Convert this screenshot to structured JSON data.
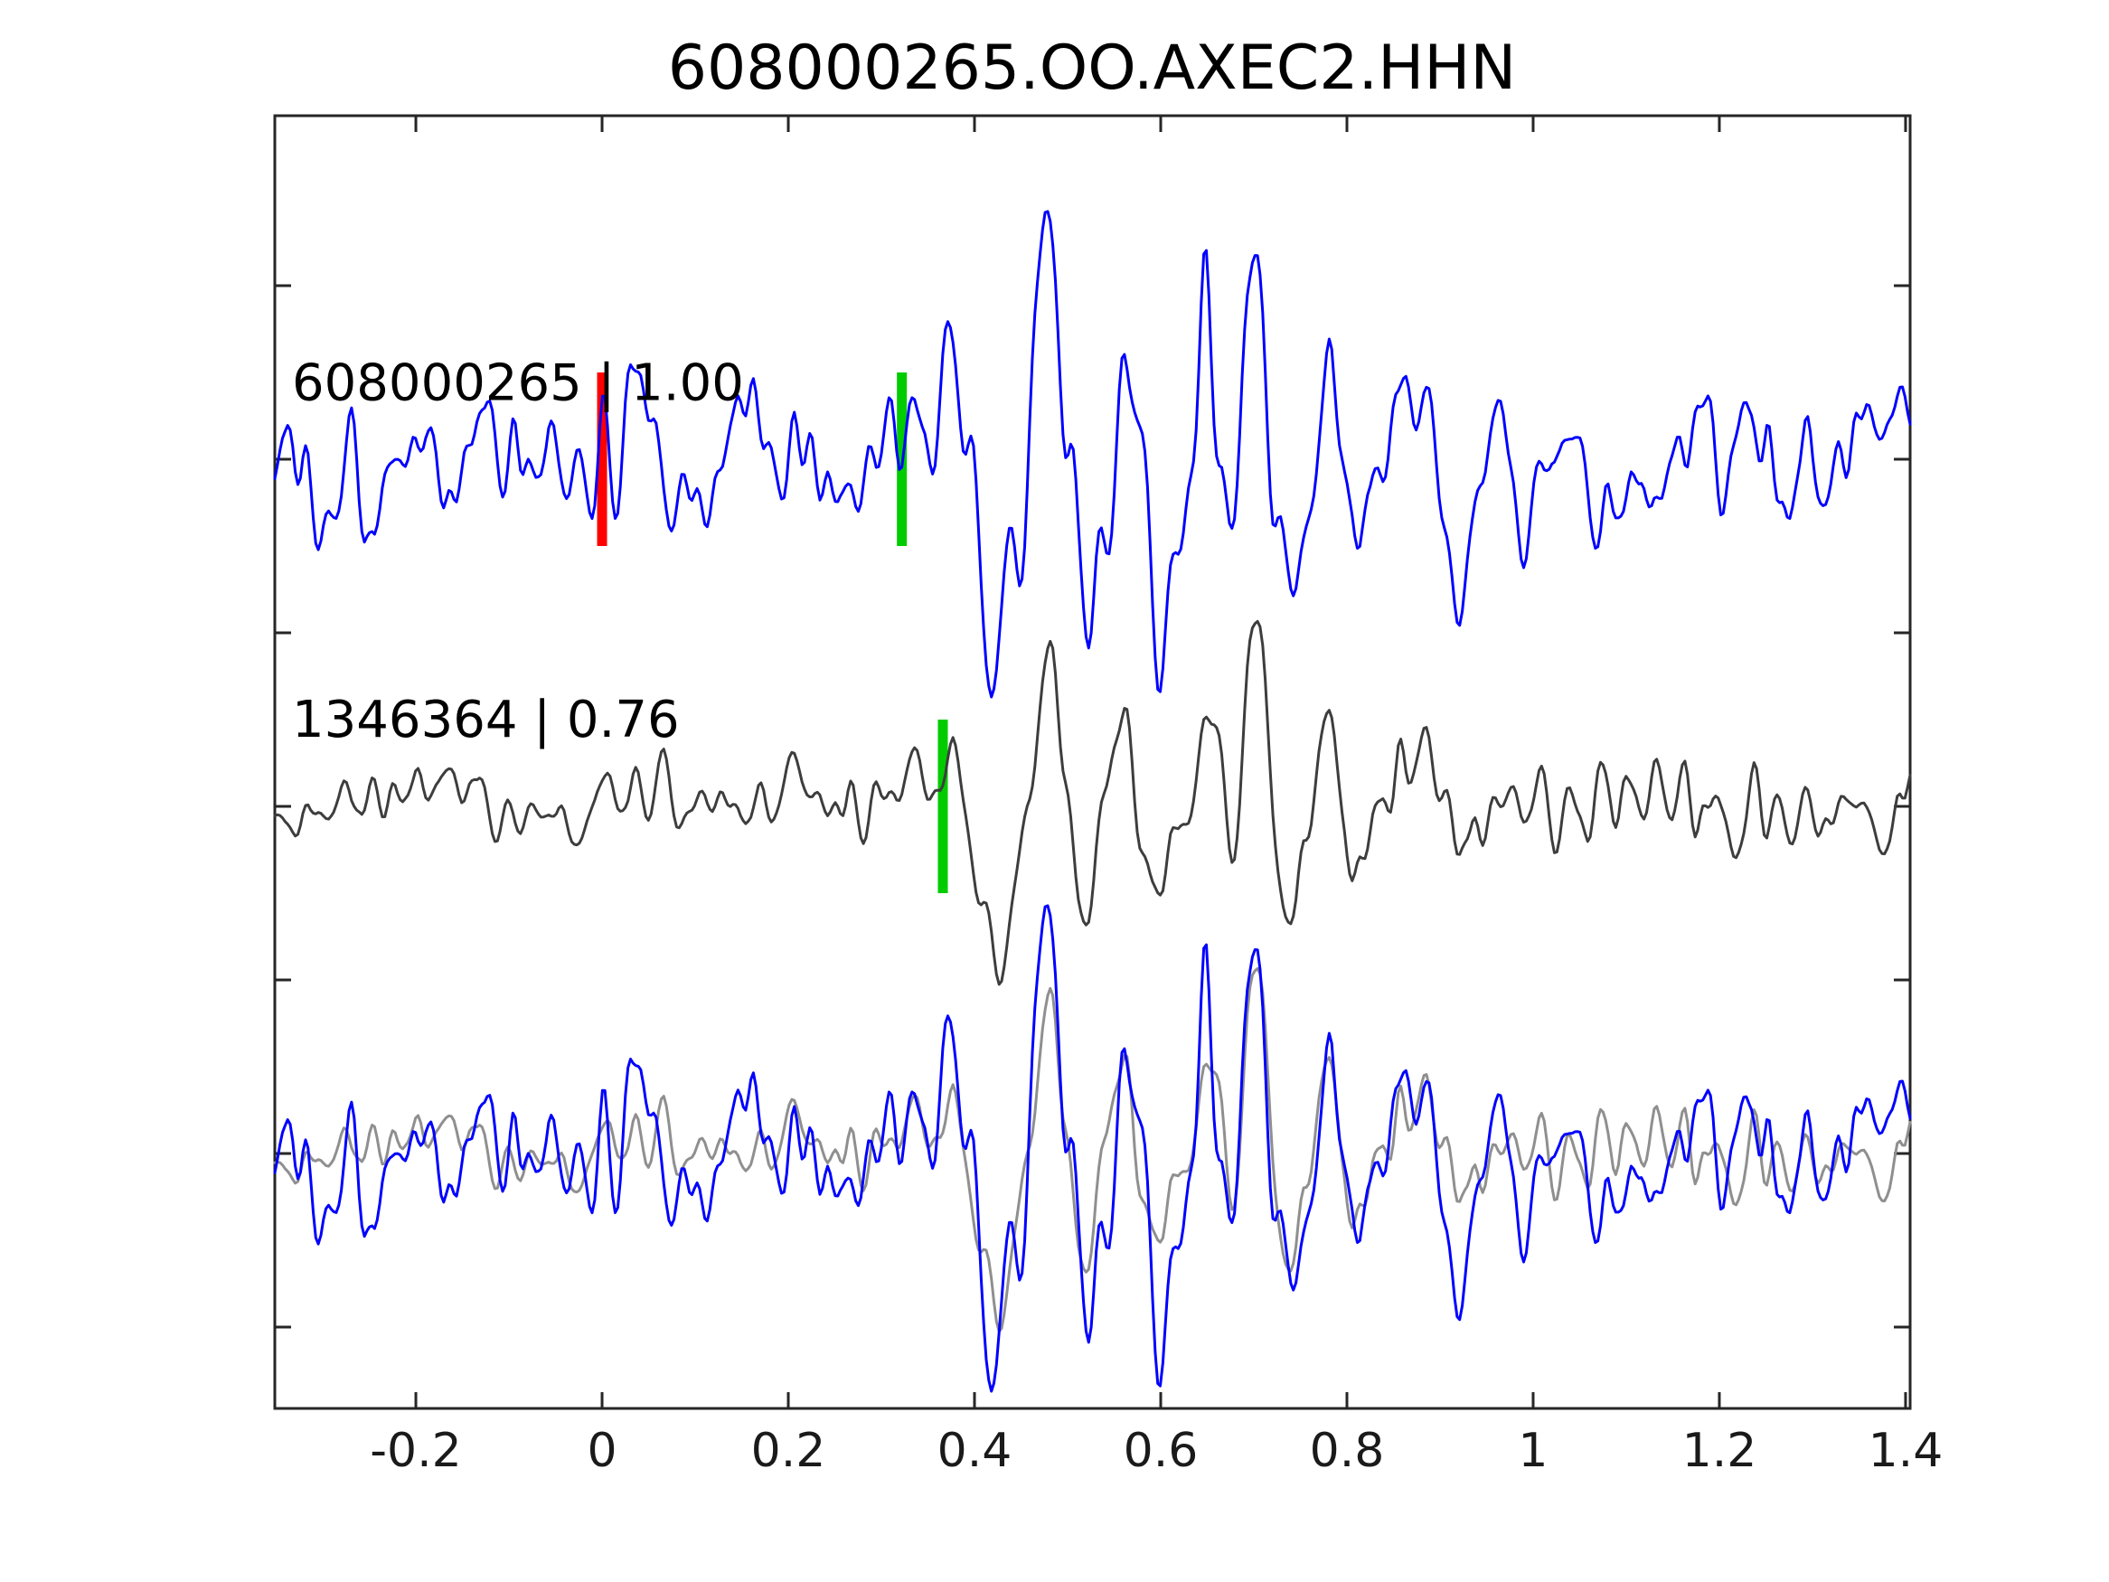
{
  "chart_data": {
    "type": "line",
    "kind": "seismic-waveform-template-match",
    "title": "608000265.OO.AXEC2.HHN",
    "xlabel": "",
    "ylabel": "",
    "xlim": [
      -0.3515,
      1.4049
    ],
    "ylim": [
      -2.7344,
      0.9896
    ],
    "xticks": [
      -0.2,
      0,
      0.2,
      0.4,
      0.6,
      0.8,
      1.0,
      1.2,
      1.4
    ],
    "xtick_labels": [
      "-0.2",
      "0",
      "0.2",
      "0.4",
      "0.6",
      "0.8",
      "1",
      "1.2",
      "1.4"
    ],
    "yticks": [
      0.5,
      0,
      -0.5,
      -1,
      -1.5,
      -2,
      -2.5
    ],
    "ytick_labels": [
      "",
      "",
      "",
      "",
      "",
      "",
      ""
    ],
    "grid": false,
    "background": "#ffffff",
    "axes_color": "#262626",
    "tick_label_color": "#1a1a1a",
    "tick_label_font_px": 52,
    "trace_label_font_px": 56,
    "n_points": 640,
    "marker_half_height": 0.25,
    "marker_width_px": 11,
    "event_pulses": [
      [
        0.335,
        0.013,
        0.32
      ],
      [
        0.372,
        0.016,
        0.48
      ],
      [
        0.425,
        0.024,
        -0.9
      ],
      [
        0.478,
        0.018,
        0.85
      ],
      [
        0.522,
        0.014,
        -0.48
      ],
      [
        0.558,
        0.013,
        0.42
      ],
      [
        0.602,
        0.017,
        -0.58
      ],
      [
        0.648,
        0.015,
        0.6
      ],
      [
        0.676,
        0.011,
        -0.34
      ],
      [
        0.7,
        0.015,
        1.0
      ],
      [
        0.737,
        0.017,
        -0.62
      ],
      [
        0.778,
        0.013,
        0.45
      ],
      [
        0.812,
        0.013,
        -0.36
      ],
      [
        0.878,
        0.025,
        0.3
      ],
      [
        0.92,
        0.02,
        -0.25
      ]
    ],
    "traces": [
      {
        "name": "trace-template",
        "id": "608000265",
        "label": "608000265 | 1.00",
        "correlation": "1.00",
        "color": "#0000ff",
        "offset": 0,
        "label_pos": {
          "t": -0.333,
          "dv": 0.17
        },
        "synth": {
          "seed": 101,
          "noise": 0.33,
          "smooth": 4,
          "env": [
            [
              -0.3515,
              1.0
            ],
            [
              0.3,
              1.0
            ],
            [
              0.42,
              1.15
            ],
            [
              0.8,
              1.05
            ],
            [
              1.4049,
              0.95
            ]
          ],
          "pulse_scale": 0.78
        },
        "markers": [
          {
            "name": "template-origin-marker",
            "t": 0.0,
            "color": "#ff0000"
          },
          {
            "name": "template-pick-marker",
            "t": 0.322,
            "color": "#00cc00"
          }
        ]
      },
      {
        "name": "trace-detection",
        "id": "1346364",
        "label": "1346364 | 0.76",
        "correlation": "0.76",
        "color": "#3d3d3d",
        "offset": -1,
        "label_pos": {
          "t": -0.333,
          "dv": 0.2
        },
        "synth": {
          "seed": 202,
          "noise": 0.165,
          "smooth": 4,
          "env": [
            [
              -0.3515,
              1.0
            ],
            [
              0.28,
              1.0
            ],
            [
              0.4,
              1.35
            ],
            [
              1.4049,
              1.3
            ]
          ],
          "pulse_scale": 0.56
        },
        "markers": [
          {
            "name": "detection-pick-marker",
            "t": 0.366,
            "color": "#00cc00"
          }
        ]
      },
      {
        "name": "trace-overlay",
        "id": "overlay",
        "label": "",
        "offset": -2,
        "components": [
          {
            "source": 1,
            "name": "overlay-detection",
            "color": "#8f8f8f"
          },
          {
            "source": 0,
            "name": "overlay-template",
            "color": "#0000ff"
          }
        ],
        "markers": []
      }
    ]
  }
}
